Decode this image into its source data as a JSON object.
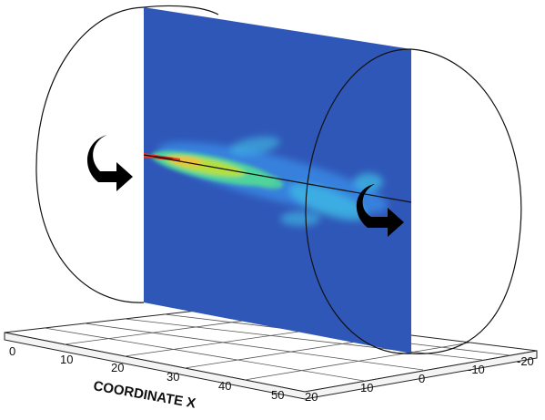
{
  "figure": {
    "plane_color": "#2f57b8",
    "jet_colors": [
      "#3a8ee8",
      "#3fc0e6",
      "#4fd49c",
      "#b6df3e",
      "#f0c23a",
      "#e63a25"
    ],
    "icons": {
      "inlet_rotation": "curved-arrow-icon",
      "outlet_rotation": "curved-arrow-icon"
    }
  },
  "axes": {
    "x_title": "COORDINATE X",
    "x_ticks": [
      "0",
      "10",
      "20",
      "30",
      "40",
      "50"
    ],
    "y_ticks": [
      "20",
      "10",
      "0",
      "-10",
      "-20"
    ]
  }
}
